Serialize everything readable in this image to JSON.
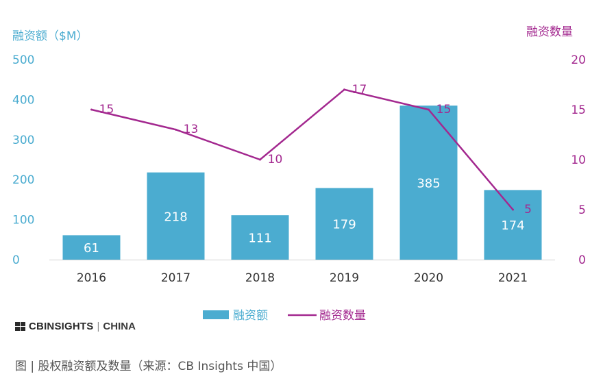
{
  "chart_data": {
    "type": "bar+line",
    "categories": [
      "2016",
      "2017",
      "2018",
      "2019",
      "2020",
      "2021"
    ],
    "series": [
      {
        "name": "融资额",
        "type": "bar",
        "axis": "left",
        "values": [
          61,
          218,
          111,
          179,
          385,
          174
        ],
        "color": "#4bacd0"
      },
      {
        "name": "融资数量",
        "type": "line",
        "axis": "right",
        "values": [
          15,
          13,
          10,
          17,
          15,
          5
        ],
        "color": "#a3288f"
      }
    ],
    "left_axis": {
      "label": "融资额（$M）",
      "ylim": [
        0,
        500
      ],
      "ticks": [
        "0",
        "100",
        "200",
        "300",
        "400",
        "500"
      ],
      "color": "#4bacd0"
    },
    "right_axis": {
      "label": "融资数量",
      "ylim": [
        0,
        20
      ],
      "ticks": [
        "0",
        "5",
        "10",
        "15",
        "20"
      ],
      "color": "#a3288f"
    },
    "legend": {
      "position": "bottom",
      "items": [
        "融资额",
        "融资数量"
      ]
    },
    "grid": false
  },
  "brand": {
    "name": "CBINSIGHTS",
    "separator": "|",
    "region": "CHINA"
  },
  "caption": "图 | 股权融资额及数量（来源：CB Insights 中国）"
}
